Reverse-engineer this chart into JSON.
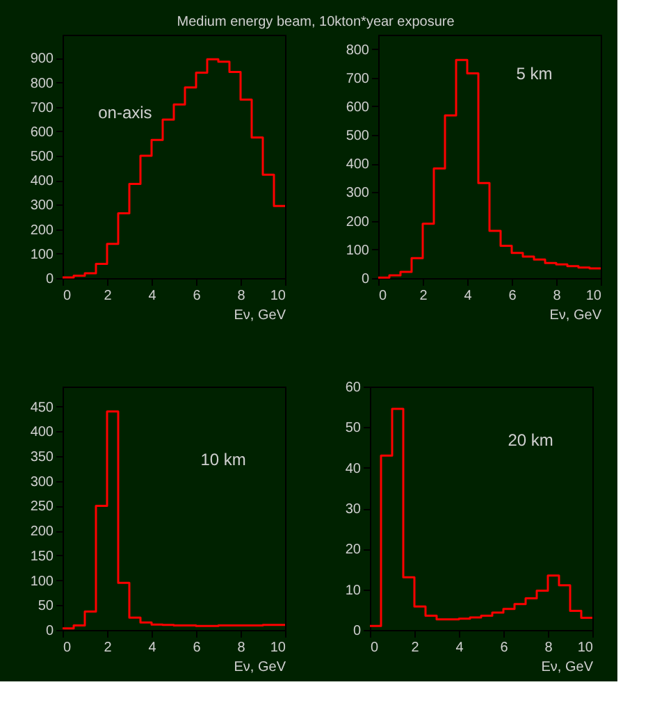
{
  "chart_data": [
    {
      "type": "histogram",
      "title": "Medium energy beam, 10kton*year exposure",
      "xlabel": "Eν, GeV",
      "annotations": [
        "on-axis"
      ],
      "bins": [
        0,
        0.5,
        1,
        1.5,
        2,
        2.5,
        3,
        3.5,
        4,
        4.5,
        5,
        5.5,
        6,
        6.5,
        7,
        7.5,
        8,
        8.5,
        9,
        9.5,
        10
      ],
      "values": [
        3,
        10,
        20,
        58,
        140,
        265,
        385,
        500,
        565,
        648,
        710,
        780,
        840,
        895,
        885,
        843,
        730,
        575,
        423,
        295
      ],
      "color": "#ff0000",
      "xlim": [
        0,
        10
      ],
      "xticks": [
        0,
        2,
        4,
        6,
        8,
        10
      ],
      "ylim": [
        0,
        995
      ],
      "yticks": [
        0,
        100,
        200,
        300,
        400,
        500,
        600,
        700,
        800,
        900
      ],
      "grid": false
    },
    {
      "type": "histogram",
      "xlabel": "Eν, GeV",
      "annotations": [
        "5 km"
      ],
      "bins": [
        0,
        0.5,
        1,
        1.5,
        2,
        2.5,
        3,
        3.5,
        4,
        4.5,
        5,
        5.5,
        6,
        6.5,
        7,
        7.5,
        8,
        8.5,
        9,
        9.5,
        10
      ],
      "values": [
        2,
        10,
        22,
        70,
        190,
        383,
        568,
        762,
        715,
        332,
        165,
        113,
        88,
        75,
        65,
        53,
        48,
        42,
        37,
        34
      ],
      "color": "#ff0000",
      "xlim": [
        0,
        10
      ],
      "xticks": [
        0,
        2,
        4,
        6,
        8,
        10
      ],
      "ylim": [
        0,
        850
      ],
      "yticks": [
        0,
        100,
        200,
        300,
        400,
        500,
        600,
        700,
        800
      ],
      "grid": false
    },
    {
      "type": "histogram",
      "xlabel": "Eν, GeV",
      "annotations": [
        "10 km"
      ],
      "bins": [
        0,
        0.5,
        1,
        1.5,
        2,
        2.5,
        3,
        3.5,
        4,
        4.5,
        5,
        5.5,
        6,
        6.5,
        7,
        7.5,
        8,
        8.5,
        9,
        9.5,
        10
      ],
      "values": [
        3,
        9,
        37,
        250,
        440,
        95,
        25,
        15,
        11,
        10,
        9,
        9,
        8,
        8,
        9,
        9,
        9,
        9,
        10,
        10
      ],
      "color": "#ff0000",
      "xlim": [
        0,
        10
      ],
      "xticks": [
        0,
        2,
        4,
        6,
        8,
        10
      ],
      "ylim": [
        0,
        490
      ],
      "yticks": [
        0,
        50,
        100,
        150,
        200,
        250,
        300,
        350,
        400,
        450
      ],
      "grid": false
    },
    {
      "type": "histogram",
      "xlabel": "Eν, GeV",
      "annotations": [
        "20 km"
      ],
      "bins": [
        0,
        0.5,
        1,
        1.5,
        2,
        2.5,
        3,
        3.5,
        4,
        4.5,
        5,
        5.5,
        6,
        6.5,
        7,
        7.5,
        8,
        8.5,
        9,
        9.5,
        10
      ],
      "values": [
        1,
        43,
        54.5,
        13,
        5.8,
        3.5,
        2.6,
        2.6,
        2.8,
        3.1,
        3.5,
        4.3,
        5.2,
        6.4,
        7.8,
        9.7,
        13.4,
        11,
        4.7,
        3
      ],
      "color": "#ff0000",
      "xlim": [
        0,
        10
      ],
      "xticks": [
        0,
        2,
        4,
        6,
        8,
        10
      ],
      "ylim": [
        0,
        60
      ],
      "yticks": [
        0,
        10,
        20,
        30,
        40,
        50,
        60
      ],
      "grid": false
    }
  ]
}
